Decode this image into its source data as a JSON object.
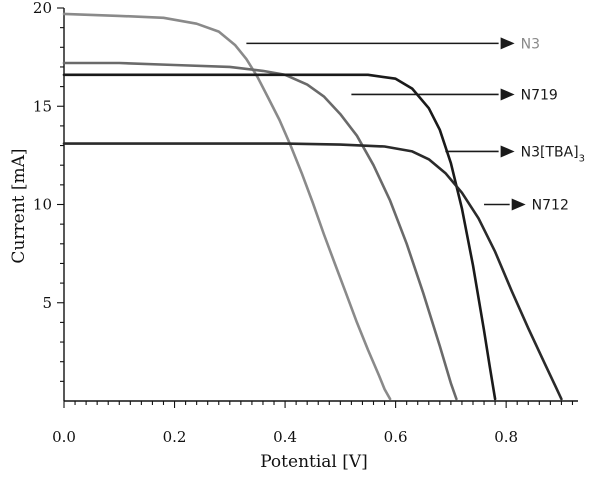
{
  "chart_data": {
    "type": "line",
    "xlabel": "Potential [V]",
    "ylabel": "Current [mA]",
    "xlim": [
      0,
      0.93
    ],
    "ylim": [
      0,
      20
    ],
    "x_ticks": [
      0.0,
      0.2,
      0.4,
      0.6,
      0.8
    ],
    "x_tick_labels": [
      "0.0",
      "0.2",
      "0.4",
      "0.6",
      "0.8"
    ],
    "y_ticks": [
      5,
      10,
      15,
      20
    ],
    "y_tick_labels": [
      "5",
      "10",
      "15",
      "20"
    ],
    "grid": false,
    "series": [
      {
        "name": "N3",
        "color": "#8a8a8a",
        "x": [
          0.0,
          0.1,
          0.18,
          0.24,
          0.28,
          0.31,
          0.33,
          0.35,
          0.37,
          0.39,
          0.41,
          0.43,
          0.45,
          0.47,
          0.49,
          0.51,
          0.53,
          0.55,
          0.57,
          0.58,
          0.59
        ],
        "y": [
          19.7,
          19.6,
          19.5,
          19.2,
          18.8,
          18.1,
          17.4,
          16.5,
          15.4,
          14.3,
          13.0,
          11.6,
          10.1,
          8.5,
          7.0,
          5.5,
          4.0,
          2.6,
          1.3,
          0.6,
          0.1
        ]
      },
      {
        "name": "N719",
        "color": "#6a6a6a",
        "x": [
          0.0,
          0.1,
          0.2,
          0.3,
          0.36,
          0.4,
          0.44,
          0.47,
          0.5,
          0.53,
          0.56,
          0.59,
          0.62,
          0.65,
          0.68,
          0.7,
          0.71
        ],
        "y": [
          17.2,
          17.2,
          17.1,
          17.0,
          16.8,
          16.6,
          16.1,
          15.5,
          14.6,
          13.5,
          12.0,
          10.2,
          8.0,
          5.5,
          2.8,
          0.9,
          0.1
        ]
      },
      {
        "name": "N3[TBA]3",
        "color": "#1a1a1a",
        "x": [
          0.0,
          0.1,
          0.2,
          0.3,
          0.4,
          0.5,
          0.55,
          0.6,
          0.63,
          0.66,
          0.68,
          0.7,
          0.72,
          0.74,
          0.76,
          0.77,
          0.78
        ],
        "y": [
          16.6,
          16.6,
          16.6,
          16.6,
          16.6,
          16.6,
          16.6,
          16.4,
          15.9,
          14.9,
          13.8,
          12.1,
          9.8,
          6.9,
          3.6,
          1.8,
          0.1
        ]
      },
      {
        "name": "N712",
        "color": "#2a2a2a",
        "x": [
          0.0,
          0.1,
          0.2,
          0.3,
          0.4,
          0.5,
          0.58,
          0.63,
          0.66,
          0.69,
          0.72,
          0.75,
          0.78,
          0.81,
          0.84,
          0.87,
          0.89,
          0.9
        ],
        "y": [
          13.1,
          13.1,
          13.1,
          13.1,
          13.1,
          13.05,
          12.95,
          12.7,
          12.3,
          11.6,
          10.6,
          9.3,
          7.6,
          5.6,
          3.7,
          1.9,
          0.7,
          0.1
        ]
      }
    ],
    "annotations": [
      {
        "name": "N3",
        "label": "N3",
        "sub": "",
        "color": "#8a8a8a",
        "from": [
          0.33,
          18.2
        ],
        "to": [
          0.79,
          18.2
        ]
      },
      {
        "name": "N719",
        "label": "N719",
        "sub": "",
        "color": "#1a1a1a",
        "from": [
          0.52,
          15.6
        ],
        "to": [
          0.79,
          15.6
        ]
      },
      {
        "name": "N3[TBA]3",
        "label": "N3[TBA]",
        "sub": "3",
        "color": "#1a1a1a",
        "from": [
          0.69,
          12.7
        ],
        "to": [
          0.79,
          12.7
        ]
      },
      {
        "name": "N712",
        "label": "N712",
        "sub": "",
        "color": "#1a1a1a",
        "from": [
          0.76,
          10.0
        ],
        "to": [
          0.81,
          10.0
        ]
      }
    ]
  }
}
